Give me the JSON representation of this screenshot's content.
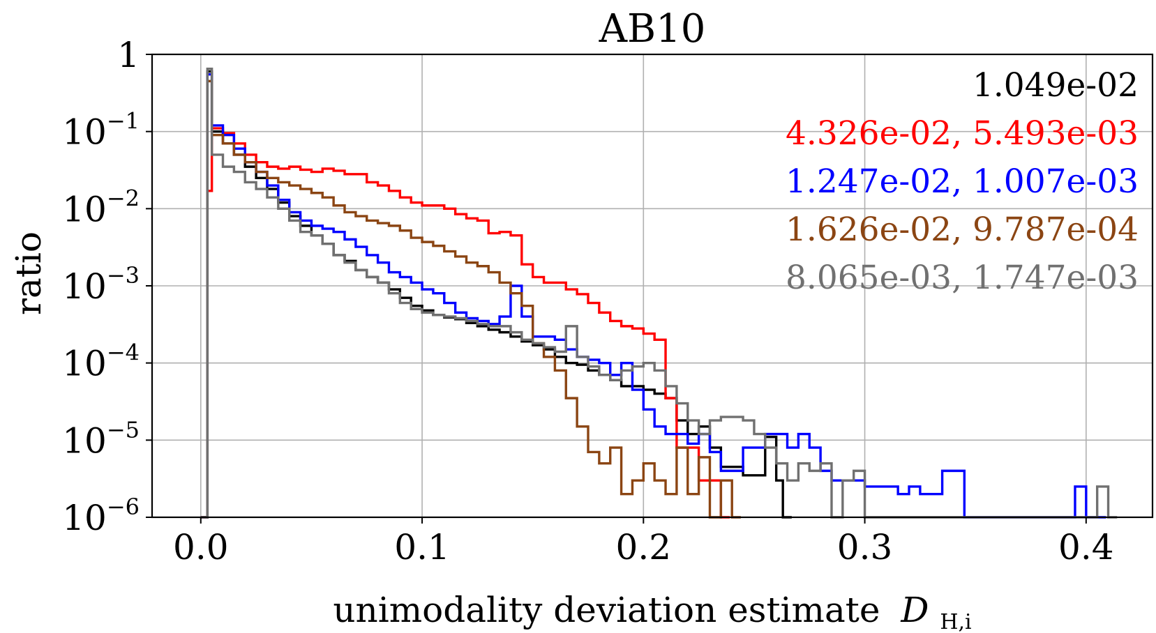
{
  "chart_data": {
    "type": "line",
    "title": "AB10",
    "xlabel": "unimodality deviation estimate",
    "xlabel_symbol": "D",
    "xlabel_sub": "H,i",
    "ylabel": "ratio",
    "xlim": [
      -0.022,
      0.43
    ],
    "ylim": [
      1e-06,
      1
    ],
    "yscale": "log",
    "grid": true,
    "x_ticks": [
      0.0,
      0.1,
      0.2,
      0.3,
      0.4
    ],
    "x_tick_labels": [
      "0.0",
      "0.1",
      "0.2",
      "0.3",
      "0.4"
    ],
    "y_ticks": [
      {
        "value": 1,
        "base": "1",
        "exp": ""
      },
      {
        "value": 0.1,
        "base": "10",
        "exp": "−1"
      },
      {
        "value": 0.01,
        "base": "10",
        "exp": "−2"
      },
      {
        "value": 0.001,
        "base": "10",
        "exp": "−3"
      },
      {
        "value": 0.0001,
        "base": "10",
        "exp": "−4"
      },
      {
        "value": 1e-05,
        "base": "10",
        "exp": "−5"
      },
      {
        "value": 1e-06,
        "base": "10",
        "exp": "−6"
      }
    ],
    "legend": [
      {
        "text": "1.049e-02",
        "color": "#000000"
      },
      {
        "text": "4.326e-02, 5.493e-03",
        "color": "#ff0000"
      },
      {
        "text": "1.247e-02, 1.007e-03",
        "color": "#0000ff"
      },
      {
        "text": "1.626e-02, 9.787e-04",
        "color": "#8b4513"
      },
      {
        "text": "8.065e-03, 1.747e-03",
        "color": "#707070"
      }
    ],
    "legend_position": "top-right",
    "series": [
      {
        "name": "black",
        "color": "#000000",
        "x": [
          0,
          0.003,
          0.005,
          0.01,
          0.015,
          0.02,
          0.025,
          0.03,
          0.035,
          0.04,
          0.045,
          0.05,
          0.055,
          0.06,
          0.065,
          0.07,
          0.075,
          0.08,
          0.085,
          0.09,
          0.095,
          0.1,
          0.105,
          0.11,
          0.115,
          0.12,
          0.125,
          0.13,
          0.135,
          0.14,
          0.145,
          0.15,
          0.155,
          0.16,
          0.165,
          0.17,
          0.175,
          0.18,
          0.185,
          0.19,
          0.195,
          0.2,
          0.205,
          0.21,
          0.215,
          0.22,
          0.225,
          0.23,
          0.235,
          0.24,
          0.245,
          0.25,
          0.255,
          0.26,
          0.263
        ],
        "values": [
          1e-06,
          0.6,
          0.1,
          0.07,
          0.05,
          0.035,
          0.025,
          0.018,
          0.012,
          0.008,
          0.006,
          0.0045,
          0.0035,
          0.0025,
          0.0021,
          0.0016,
          0.0013,
          0.0011,
          0.0009,
          0.0007,
          0.00055,
          0.00048,
          0.00042,
          0.00039,
          0.00037,
          0.00033,
          0.0003,
          0.00027,
          0.00025,
          0.00022,
          0.00019,
          0.00017,
          0.00015,
          0.00012,
          0.0001,
          9.5e-05,
          8e-05,
          7e-05,
          6e-05,
          5e-05,
          5e-05,
          4.5e-05,
          4e-05,
          3.5e-05,
          1.8e-05,
          1.2e-05,
          1.5e-05,
          8e-06,
          4.5e-06,
          4.5e-06,
          3.5e-06,
          3.5e-06,
          1.1e-05,
          3e-06,
          1e-06
        ]
      },
      {
        "name": "red",
        "color": "#ff0000",
        "x": [
          0,
          0.003,
          0.005,
          0.01,
          0.015,
          0.02,
          0.025,
          0.03,
          0.035,
          0.04,
          0.045,
          0.05,
          0.055,
          0.06,
          0.065,
          0.07,
          0.075,
          0.08,
          0.085,
          0.09,
          0.095,
          0.1,
          0.105,
          0.11,
          0.115,
          0.12,
          0.125,
          0.13,
          0.135,
          0.14,
          0.145,
          0.15,
          0.155,
          0.16,
          0.165,
          0.17,
          0.175,
          0.18,
          0.185,
          0.19,
          0.195,
          0.2,
          0.205,
          0.21,
          0.215,
          0.22,
          0.225,
          0.23,
          0.235
        ],
        "values": [
          1e-06,
          0.017,
          0.11,
          0.095,
          0.07,
          0.05,
          0.04,
          0.035,
          0.033,
          0.035,
          0.032,
          0.03,
          0.033,
          0.031,
          0.028,
          0.028,
          0.022,
          0.02,
          0.017,
          0.014,
          0.012,
          0.011,
          0.011,
          0.01,
          0.0085,
          0.0075,
          0.007,
          0.0048,
          0.005,
          0.0045,
          0.0019,
          0.0013,
          0.0011,
          0.0011,
          0.0009,
          0.00078,
          0.0006,
          0.00045,
          0.00035,
          0.0003,
          0.00028,
          0.00024,
          0.0002,
          3.5e-05,
          8e-06,
          8e-06,
          3e-06,
          3e-06,
          1e-06
        ]
      },
      {
        "name": "blue",
        "color": "#0000ff",
        "x": [
          0,
          0.003,
          0.005,
          0.01,
          0.015,
          0.02,
          0.025,
          0.03,
          0.035,
          0.04,
          0.045,
          0.05,
          0.055,
          0.06,
          0.065,
          0.07,
          0.075,
          0.08,
          0.085,
          0.09,
          0.095,
          0.1,
          0.105,
          0.11,
          0.115,
          0.12,
          0.125,
          0.13,
          0.135,
          0.14,
          0.145,
          0.15,
          0.155,
          0.16,
          0.165,
          0.17,
          0.175,
          0.18,
          0.185,
          0.19,
          0.195,
          0.2,
          0.205,
          0.21,
          0.215,
          0.22,
          0.225,
          0.23,
          0.235,
          0.24,
          0.245,
          0.25,
          0.255,
          0.26,
          0.265,
          0.27,
          0.275,
          0.28,
          0.285,
          0.29,
          0.295,
          0.3,
          0.305,
          0.31,
          0.315,
          0.32,
          0.325,
          0.33,
          0.335,
          0.34,
          0.345,
          0.35,
          0.355,
          0.36,
          0.365,
          0.37,
          0.375,
          0.38,
          0.385,
          0.39,
          0.395,
          0.4,
          0.405
        ],
        "values": [
          1e-06,
          0.55,
          0.12,
          0.09,
          0.06,
          0.04,
          0.03,
          0.02,
          0.013,
          0.009,
          0.007,
          0.006,
          0.0055,
          0.005,
          0.004,
          0.0032,
          0.0025,
          0.002,
          0.0015,
          0.0013,
          0.0011,
          0.0009,
          0.0008,
          0.0006,
          0.00045,
          0.00038,
          0.00035,
          0.00032,
          0.0004,
          0.001,
          0.0004,
          0.00022,
          0.00022,
          0.0002,
          0.00015,
          0.00012,
          0.00011,
          0.0001,
          7e-05,
          0.0001,
          4.5e-05,
          2.5e-05,
          1.5e-05,
          1.2e-05,
          1.2e-05,
          9e-06,
          1.2e-05,
          7e-06,
          4e-06,
          4e-06,
          8e-06,
          8e-06,
          1.2e-05,
          1.2e-05,
          8e-06,
          1.2e-05,
          8e-06,
          4e-06,
          3e-06,
          3e-06,
          3e-06,
          2.5e-06,
          2.5e-06,
          2.5e-06,
          2e-06,
          2.5e-06,
          2e-06,
          2e-06,
          4e-06,
          4e-06,
          1e-06,
          1e-06,
          1e-06,
          1e-06,
          1e-06,
          1e-06,
          1e-06,
          1e-06,
          1e-06,
          1e-06,
          2.5e-06,
          1e-06,
          1e-06
        ]
      },
      {
        "name": "brown",
        "color": "#8b4513",
        "x": [
          0,
          0.003,
          0.005,
          0.01,
          0.015,
          0.02,
          0.025,
          0.03,
          0.035,
          0.04,
          0.045,
          0.05,
          0.055,
          0.06,
          0.065,
          0.07,
          0.075,
          0.08,
          0.085,
          0.09,
          0.095,
          0.1,
          0.105,
          0.11,
          0.115,
          0.12,
          0.125,
          0.13,
          0.135,
          0.14,
          0.145,
          0.15,
          0.155,
          0.16,
          0.165,
          0.17,
          0.175,
          0.18,
          0.185,
          0.19,
          0.195,
          0.2,
          0.205,
          0.21,
          0.215,
          0.22,
          0.225,
          0.23,
          0.235,
          0.24
        ],
        "values": [
          1e-06,
          0.45,
          0.09,
          0.07,
          0.05,
          0.04,
          0.03,
          0.025,
          0.022,
          0.02,
          0.018,
          0.016,
          0.014,
          0.011,
          0.009,
          0.008,
          0.007,
          0.0065,
          0.006,
          0.0052,
          0.0042,
          0.0037,
          0.0033,
          0.0028,
          0.0024,
          0.002,
          0.0018,
          0.0015,
          0.0011,
          0.0008,
          0.00055,
          0.00018,
          0.00012,
          8e-05,
          3.5e-05,
          1.5e-05,
          7e-06,
          5e-06,
          8e-06,
          2e-06,
          3e-06,
          5e-06,
          3e-06,
          2e-06,
          8e-06,
          2e-06,
          6e-06,
          1e-06,
          3e-06,
          1e-06
        ]
      },
      {
        "name": "gray",
        "color": "#707070",
        "x": [
          0,
          0.003,
          0.005,
          0.01,
          0.015,
          0.02,
          0.025,
          0.03,
          0.035,
          0.04,
          0.045,
          0.05,
          0.055,
          0.06,
          0.065,
          0.07,
          0.075,
          0.08,
          0.085,
          0.09,
          0.095,
          0.1,
          0.105,
          0.11,
          0.115,
          0.12,
          0.125,
          0.13,
          0.135,
          0.14,
          0.145,
          0.15,
          0.155,
          0.16,
          0.165,
          0.17,
          0.175,
          0.18,
          0.185,
          0.19,
          0.195,
          0.2,
          0.205,
          0.21,
          0.215,
          0.22,
          0.225,
          0.23,
          0.235,
          0.24,
          0.245,
          0.25,
          0.255,
          0.26,
          0.265,
          0.27,
          0.275,
          0.28,
          0.285,
          0.29,
          0.295,
          0.3,
          0.305,
          0.31,
          0.315,
          0.32,
          0.325,
          0.33,
          0.335,
          0.34,
          0.345,
          0.35,
          0.355,
          0.36,
          0.365,
          0.37,
          0.375,
          0.38,
          0.385,
          0.39,
          0.395,
          0.4,
          0.405,
          0.41
        ],
        "values": [
          1e-06,
          0.65,
          0.05,
          0.035,
          0.03,
          0.022,
          0.018,
          0.014,
          0.01,
          0.007,
          0.005,
          0.0045,
          0.0035,
          0.0025,
          0.002,
          0.0016,
          0.0013,
          0.0011,
          0.0008,
          0.0006,
          0.0005,
          0.00045,
          0.00042,
          0.0004,
          0.00038,
          0.00035,
          0.00032,
          0.0003,
          0.0003,
          0.00025,
          0.0002,
          0.00018,
          0.00016,
          0.00014,
          0.0003,
          0.00012,
          9e-05,
          7e-05,
          6e-05,
          8e-05,
          9e-05,
          0.0001,
          8e-05,
          5e-05,
          3e-05,
          1.8e-05,
          1.2e-05,
          1.8e-05,
          2e-05,
          2e-05,
          1.8e-05,
          1.2e-05,
          8e-06,
          5e-06,
          3e-06,
          5e-06,
          4e-06,
          5e-06,
          1e-06,
          3e-06,
          4e-06,
          1e-06,
          1e-06,
          1e-06,
          1e-06,
          1e-06,
          1e-06,
          1e-06,
          1e-06,
          1e-06,
          1e-06,
          1e-06,
          1e-06,
          1e-06,
          1e-06,
          1e-06,
          1e-06,
          1e-06,
          1e-06,
          1e-06,
          1e-06,
          1e-06,
          2.5e-06,
          1e-06
        ]
      }
    ]
  }
}
